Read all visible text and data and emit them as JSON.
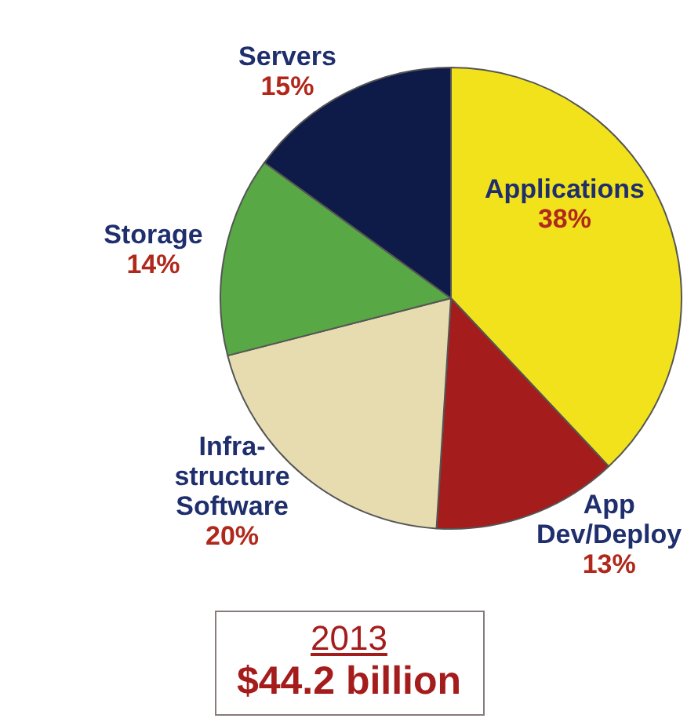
{
  "chart_data": {
    "type": "pie",
    "categories": [
      "Applications",
      "App Dev/Deploy",
      "Infra-structure Software",
      "Storage",
      "Servers"
    ],
    "values": [
      38,
      13,
      20,
      14,
      15
    ],
    "value_labels": [
      "38%",
      "13%",
      "20%",
      "14%",
      "15%"
    ],
    "colors": [
      "#f2e21c",
      "#a51c1c",
      "#e6dcb0",
      "#58a845",
      "#0e1a48"
    ],
    "legend": false,
    "annotations": [
      "2013",
      "$44.2 billion"
    ]
  }
}
